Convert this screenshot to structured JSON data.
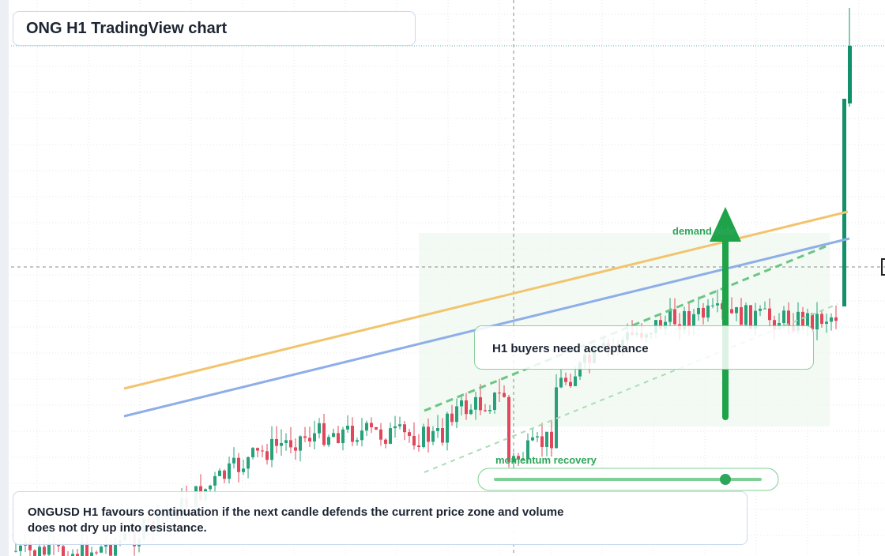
{
  "header": {
    "title": "ONG H1 TradingView chart"
  },
  "annotations": {
    "demand": "demand side",
    "acceptance": "H1 buyers need acceptance",
    "momentum": "momentum recovery"
  },
  "footer": {
    "note": "ONGUSD H1 favours continuation if the next candle defends the current price zone and volume does not dry up into resistance."
  }
}
